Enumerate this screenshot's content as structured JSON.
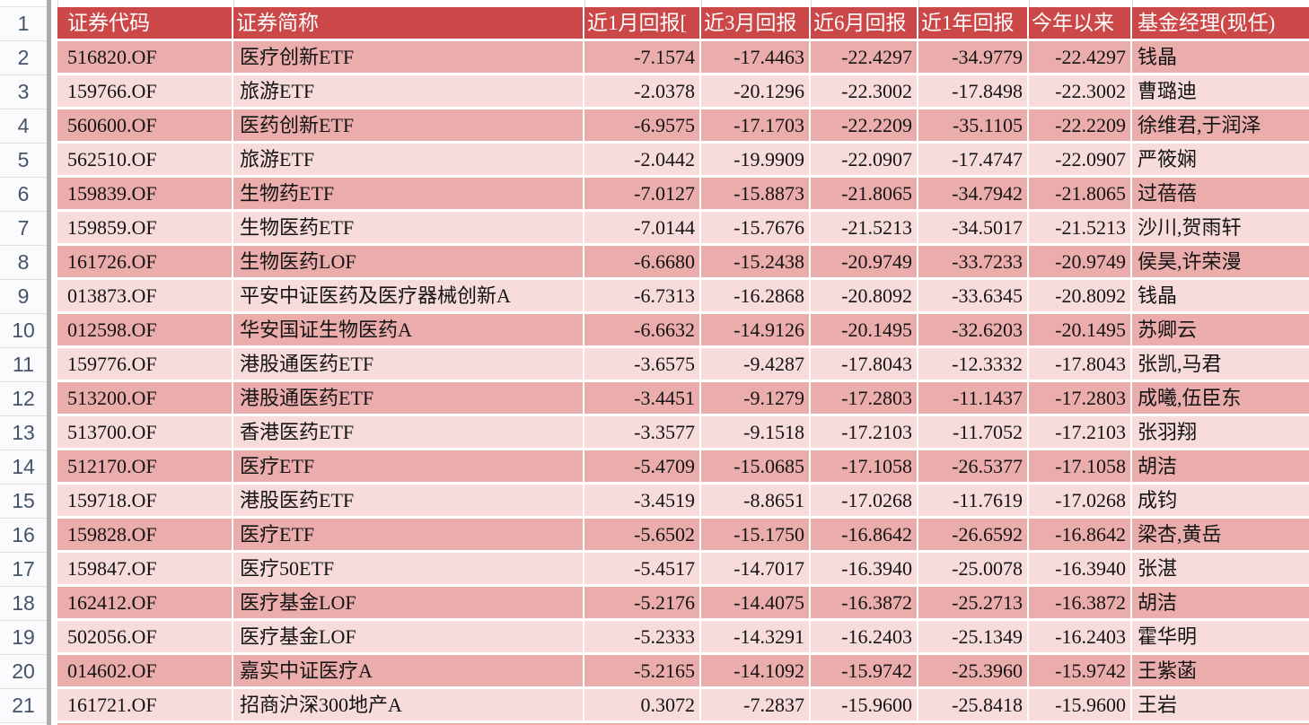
{
  "colors": {
    "header_bg": "#CC4747",
    "row_dark": "#EBACAC",
    "row_light": "#F8DBDB",
    "gutter_text": "#44546A"
  },
  "gutter": {
    "row_numbers": [
      "1",
      "2",
      "3",
      "4",
      "5",
      "6",
      "7",
      "8",
      "9",
      "10",
      "11",
      "12",
      "13",
      "14",
      "15",
      "16",
      "17",
      "18",
      "19",
      "20",
      "21"
    ]
  },
  "header": {
    "cells": [
      "证券代码",
      "证券简称",
      "近1月回报[",
      "近3月回报",
      "近6月回报",
      "近1年回报",
      "今年以来",
      "基金经理(现任)"
    ]
  },
  "rows": [
    {
      "code": "516820.OF",
      "name": "医疗创新ETF",
      "m1": "-7.1574",
      "m3": "-17.4463",
      "m6": "-22.4297",
      "y1": "-34.9779",
      "ytd": "-22.4297",
      "manager": "钱晶"
    },
    {
      "code": "159766.OF",
      "name": "旅游ETF",
      "m1": "-2.0378",
      "m3": "-20.1296",
      "m6": "-22.3002",
      "y1": "-17.8498",
      "ytd": "-22.3002",
      "manager": "曹璐迪"
    },
    {
      "code": "560600.OF",
      "name": "医药创新ETF",
      "m1": "-6.9575",
      "m3": "-17.1703",
      "m6": "-22.2209",
      "y1": "-35.1105",
      "ytd": "-22.2209",
      "manager": "徐维君,于润泽"
    },
    {
      "code": "562510.OF",
      "name": "旅游ETF",
      "m1": "-2.0442",
      "m3": "-19.9909",
      "m6": "-22.0907",
      "y1": "-17.4747",
      "ytd": "-22.0907",
      "manager": "严筱娴"
    },
    {
      "code": "159839.OF",
      "name": "生物药ETF",
      "m1": "-7.0127",
      "m3": "-15.8873",
      "m6": "-21.8065",
      "y1": "-34.7942",
      "ytd": "-21.8065",
      "manager": "过蓓蓓"
    },
    {
      "code": "159859.OF",
      "name": "生物医药ETF",
      "m1": "-7.0144",
      "m3": "-15.7676",
      "m6": "-21.5213",
      "y1": "-34.5017",
      "ytd": "-21.5213",
      "manager": "沙川,贺雨轩"
    },
    {
      "code": "161726.OF",
      "name": "生物医药LOF",
      "m1": "-6.6680",
      "m3": "-15.2438",
      "m6": "-20.9749",
      "y1": "-33.7233",
      "ytd": "-20.9749",
      "manager": "侯昊,许荣漫"
    },
    {
      "code": "013873.OF",
      "name": "平安中证医药及医疗器械创新A",
      "m1": "-6.7313",
      "m3": "-16.2868",
      "m6": "-20.8092",
      "y1": "-33.6345",
      "ytd": "-20.8092",
      "manager": "钱晶"
    },
    {
      "code": "012598.OF",
      "name": "华安国证生物医药A",
      "m1": "-6.6632",
      "m3": "-14.9126",
      "m6": "-20.1495",
      "y1": "-32.6203",
      "ytd": "-20.1495",
      "manager": "苏卿云"
    },
    {
      "code": "159776.OF",
      "name": "港股通医药ETF",
      "m1": "-3.6575",
      "m3": "-9.4287",
      "m6": "-17.8043",
      "y1": "-12.3332",
      "ytd": "-17.8043",
      "manager": "张凯,马君"
    },
    {
      "code": "513200.OF",
      "name": "港股通医药ETF",
      "m1": "-3.4451",
      "m3": "-9.1279",
      "m6": "-17.2803",
      "y1": "-11.1437",
      "ytd": "-17.2803",
      "manager": "成曦,伍臣东"
    },
    {
      "code": "513700.OF",
      "name": "香港医药ETF",
      "m1": "-3.3577",
      "m3": "-9.1518",
      "m6": "-17.2103",
      "y1": "-11.7052",
      "ytd": "-17.2103",
      "manager": "张羽翔"
    },
    {
      "code": "512170.OF",
      "name": "医疗ETF",
      "m1": "-5.4709",
      "m3": "-15.0685",
      "m6": "-17.1058",
      "y1": "-26.5377",
      "ytd": "-17.1058",
      "manager": "胡洁"
    },
    {
      "code": "159718.OF",
      "name": "港股医药ETF",
      "m1": "-3.4519",
      "m3": "-8.8651",
      "m6": "-17.0268",
      "y1": "-11.7619",
      "ytd": "-17.0268",
      "manager": "成钧"
    },
    {
      "code": "159828.OF",
      "name": "医疗ETF",
      "m1": "-5.6502",
      "m3": "-15.1750",
      "m6": "-16.8642",
      "y1": "-26.6592",
      "ytd": "-16.8642",
      "manager": "梁杏,黄岳"
    },
    {
      "code": "159847.OF",
      "name": "医疗50ETF",
      "m1": "-5.4517",
      "m3": "-14.7017",
      "m6": "-16.3940",
      "y1": "-25.0078",
      "ytd": "-16.3940",
      "manager": "张湛"
    },
    {
      "code": "162412.OF",
      "name": "医疗基金LOF",
      "m1": "-5.2176",
      "m3": "-14.4075",
      "m6": "-16.3872",
      "y1": "-25.2713",
      "ytd": "-16.3872",
      "manager": "胡洁"
    },
    {
      "code": "502056.OF",
      "name": "医疗基金LOF",
      "m1": "-5.2333",
      "m3": "-14.3291",
      "m6": "-16.2403",
      "y1": "-25.1349",
      "ytd": "-16.2403",
      "manager": "霍华明"
    },
    {
      "code": "014602.OF",
      "name": "嘉实中证医疗A",
      "m1": "-5.2165",
      "m3": "-14.1092",
      "m6": "-15.9742",
      "y1": "-25.3960",
      "ytd": "-15.9742",
      "manager": "王紫菡"
    },
    {
      "code": "161721.OF",
      "name": "招商沪深300地产A",
      "m1": "0.3072",
      "m3": "-7.2837",
      "m6": "-15.9600",
      "y1": "-25.8418",
      "ytd": "-15.9600",
      "manager": "王岩"
    }
  ]
}
